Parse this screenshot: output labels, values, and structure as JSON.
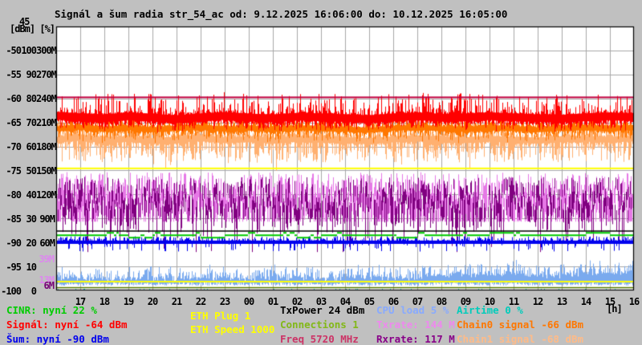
{
  "page": {
    "background": "#c0c0c0",
    "plot_background": "#ffffff",
    "grid_color": "#a8a8a8"
  },
  "title": "Signál a šum radia str_54_ac od: 9.12.2025 16:06:00 do: 10.12.2025 16:05:00",
  "y_axis": {
    "header": "[dBm] [%]",
    "top_tick": "45",
    "rows": [
      {
        "dbm": "-50",
        "pct": "100",
        "rate": "300M"
      },
      {
        "dbm": "-55",
        "pct": "90",
        "rate": "270M"
      },
      {
        "dbm": "-60",
        "pct": "80",
        "rate": "240M"
      },
      {
        "dbm": "-65",
        "pct": "70",
        "rate": "210M"
      },
      {
        "dbm": "-70",
        "pct": "60",
        "rate": "180M"
      },
      {
        "dbm": "-75",
        "pct": "50",
        "rate": "150M"
      },
      {
        "dbm": "-80",
        "pct": "40",
        "rate": "120M"
      },
      {
        "dbm": "-85",
        "pct": "30",
        "rate": "90M"
      },
      {
        "dbm": "-90",
        "pct": "20",
        "rate": "60M"
      },
      {
        "dbm": "-95",
        "pct": "10",
        "rate": ""
      },
      {
        "dbm": "-100",
        "pct": "0",
        "rate": ""
      }
    ],
    "extra_rate_labels": [
      {
        "text": "39M",
        "value_mbps": 39,
        "color": "#dd88ee"
      },
      {
        "text": "13M",
        "value_mbps": 13,
        "color": "#dd88ee"
      },
      {
        "text": "6M",
        "value_mbps": 6,
        "color": "#770077"
      }
    ]
  },
  "x_axis": {
    "hours": [
      "17",
      "18",
      "19",
      "20",
      "21",
      "22",
      "23",
      "00",
      "01",
      "02",
      "03",
      "04",
      "05",
      "06",
      "07",
      "08",
      "09",
      "10",
      "11",
      "12",
      "13",
      "14",
      "15",
      "16"
    ],
    "unit": "[h]"
  },
  "chart_data": {
    "type": "line",
    "title": "Signál a šum radia str_54_ac",
    "time_from": "9.12.2025 16:06:00",
    "time_to": "10.12.2025 16:05:00",
    "dbm_axis_range": [
      -100,
      -45
    ],
    "pct_axis_range": [
      0,
      100
    ],
    "rate_axis_range_mbps": [
      0,
      300
    ],
    "grid": true,
    "x_hours": [
      "17",
      "18",
      "19",
      "20",
      "21",
      "22",
      "23",
      "00",
      "01",
      "02",
      "03",
      "04",
      "05",
      "06",
      "07",
      "08",
      "09",
      "10",
      "11",
      "12",
      "13",
      "14",
      "15",
      "16",
      "16"
    ],
    "series": [
      {
        "name": "signal",
        "label": "Signál",
        "unit": "dBm",
        "color": "#ff0000",
        "now": -64,
        "hourly": [
          -63.6,
          -63.9,
          -64.1,
          -63.7,
          -64.0,
          -64.3,
          -63.9,
          -63.6,
          -64.0,
          -64.1,
          -63.8,
          -63.9,
          -64.1,
          -64.3,
          -63.9,
          -63.7,
          -64.0,
          -63.9,
          -63.7,
          -63.9,
          -64.1,
          -64.2,
          -63.9,
          -63.7,
          -63.9
        ]
      },
      {
        "name": "chain0_signal",
        "label": "Chain0 signal",
        "unit": "dBm",
        "color": "#ff7700",
        "now": -66,
        "hourly": [
          -66.3,
          -66.0,
          -66.4,
          -66.1,
          -66.5,
          -66.2,
          -66.0,
          -66.4,
          -66.2,
          -66.5,
          -66.1,
          -66.3,
          -66.4,
          -66.6,
          -66.2,
          -66.0,
          -66.3,
          -66.4,
          -66.1,
          -66.3,
          -66.5,
          -66.2,
          -66.1,
          -66.3,
          -66.0
        ]
      },
      {
        "name": "chain1_signal",
        "label": "Chain1 signal",
        "unit": "dBm",
        "color": "#ffb070",
        "now": -68,
        "hourly": [
          -68.6,
          -68.2,
          -68.7,
          -68.4,
          -68.9,
          -68.6,
          -68.3,
          -68.7,
          -68.5,
          -68.8,
          -68.4,
          -68.6,
          -68.7,
          -68.9,
          -68.5,
          -68.3,
          -68.6,
          -68.7,
          -68.4,
          -68.6,
          -68.8,
          -68.5,
          -68.4,
          -68.6,
          -68.3
        ]
      },
      {
        "name": "noise",
        "label": "Šum",
        "unit": "dBm",
        "color": "#0000ee",
        "now": -90,
        "hourly": [
          -90,
          -90,
          -90,
          -90,
          -90,
          -90,
          -90,
          -90,
          -90,
          -90,
          -90,
          -90,
          -90,
          -90,
          -90,
          -90,
          -90,
          -90,
          -90,
          -90,
          -90,
          -90,
          -90,
          -90,
          -90
        ]
      },
      {
        "name": "cinr",
        "label": "CINR",
        "unit": "%",
        "color": "#00cc00",
        "now": 22,
        "hourly": [
          23,
          23,
          23,
          22,
          23,
          23,
          22,
          23,
          23,
          23,
          22,
          23,
          23,
          23,
          22,
          23,
          23,
          23,
          24,
          23,
          23,
          23,
          24,
          23,
          22
        ]
      },
      {
        "name": "cpu_load",
        "label": "CPU load",
        "unit": "%",
        "color": "#7aaaee",
        "now": 5,
        "hourly": [
          5,
          5,
          4,
          4,
          5,
          4,
          5,
          5,
          4,
          5,
          5,
          4,
          5,
          5,
          5,
          5,
          6,
          6,
          6,
          7,
          6,
          6,
          7,
          7,
          7
        ]
      },
      {
        "name": "txrate",
        "label": "Txrate",
        "unit": "Mbps",
        "color": "#e678e6",
        "now": 144,
        "hourly": [
          144,
          132,
          126,
          129,
          133,
          127,
          131,
          129,
          125,
          131,
          133,
          129,
          127,
          131,
          129,
          133,
          131,
          129,
          133,
          136,
          131,
          129,
          133,
          131,
          144
        ]
      },
      {
        "name": "rxrate",
        "label": "Rxrate",
        "unit": "Mbps",
        "color": "#800080",
        "now": 117,
        "hourly": [
          117,
          113,
          108,
          111,
          115,
          109,
          113,
          111,
          107,
          113,
          115,
          111,
          109,
          113,
          111,
          115,
          113,
          111,
          115,
          118,
          113,
          111,
          115,
          113,
          117
        ]
      },
      {
        "name": "airtime",
        "label": "Airtime",
        "unit": "%",
        "color": "#00ccbb",
        "now": 0,
        "hourly": [
          0,
          0,
          0,
          0,
          0,
          0,
          0,
          0,
          0,
          0,
          0,
          0,
          0,
          0,
          0,
          0,
          0,
          0,
          0,
          0,
          0,
          0,
          0,
          0,
          0
        ]
      }
    ],
    "markers": [
      {
        "name": "signal-max-line",
        "color": "#c00040",
        "dbm": -59.6
      },
      {
        "name": "upper-yellow-line",
        "color": "#ffff00",
        "dbm": -74.4
      },
      {
        "name": "txpower-black-line",
        "color": "#000000",
        "dbm": -87.5
      },
      {
        "name": "lower-yellow-line",
        "color": "#ffff00",
        "dbm": -98.0
      },
      {
        "name": "connections-olive-line",
        "color": "#557700",
        "dbm": -99.3
      }
    ]
  },
  "legend": {
    "cinr": {
      "text": "CINR: nyní 22 %",
      "color": "#00cc00"
    },
    "signal": {
      "text": "Signál: nyní -64 dBm",
      "color": "#ff0000"
    },
    "noise": {
      "text": "Šum: nyní -90 dBm",
      "color": "#0000ee"
    },
    "eth_plug": {
      "text": "ETH Plug 1",
      "color": "#ffff00"
    },
    "eth_speed": {
      "text": "ETH Speed 1000",
      "color": "#ffff00"
    },
    "txpower": {
      "text": "TxPower 24 dBm",
      "color": "#000000"
    },
    "connections": {
      "text": "Connections 1",
      "color": "#82b818"
    },
    "freq": {
      "text": "Freq 5720 MHz",
      "color": "#cc3366"
    },
    "cpu": {
      "text": "CPU load 5 %",
      "color": "#88aaff"
    },
    "txrate": {
      "text": "Txrate: 144 M",
      "color": "#ee88ee"
    },
    "rxrate": {
      "text": "Rxrate: 117 M",
      "color": "#880088"
    },
    "airtime": {
      "text": "Airtime 0 %",
      "color": "#00ccbb"
    },
    "chain0": {
      "text": "Chain0 signal -66 dBm",
      "color": "#ff7700"
    },
    "chain1": {
      "text": "Chain1 signal -68 dBm",
      "color": "#ffbb88"
    }
  }
}
